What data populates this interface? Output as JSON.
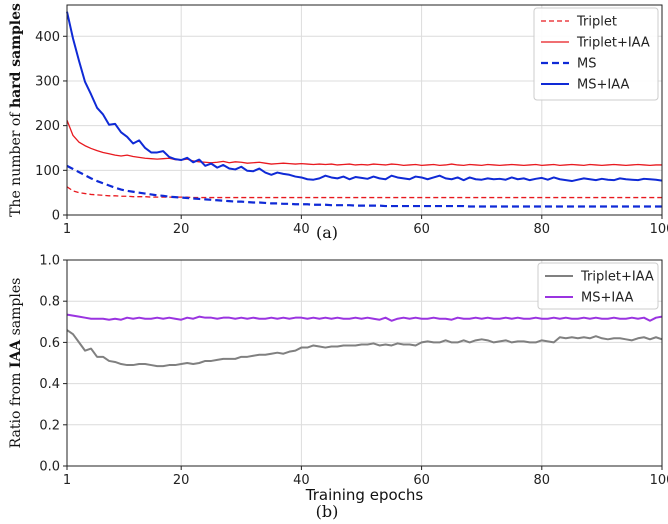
{
  "chart_data": [
    {
      "type": "line",
      "panel_label": "(a)",
      "ylabel_prefix": "The number of ",
      "ylabel_bold": "hard samples",
      "xlabel": "",
      "xlim": [
        1,
        100
      ],
      "ylim": [
        0,
        470
      ],
      "x_ticks": [
        1,
        20,
        40,
        60,
        80,
        100
      ],
      "y_ticks": [
        0,
        100,
        200,
        300,
        400
      ],
      "grid": true,
      "legend_position": "top-right",
      "series": [
        {
          "name": "Triplet",
          "color": "#e8191f",
          "dash": "dashed",
          "width": 1.3,
          "values": [
            63,
            54,
            50,
            48,
            46,
            45,
            44,
            43,
            43,
            42,
            42,
            41,
            41,
            41,
            40,
            40,
            40,
            40,
            40,
            40,
            40,
            39,
            39,
            39,
            39,
            39,
            39,
            39,
            39,
            39,
            39,
            39,
            39,
            39,
            39,
            39,
            39,
            39,
            39,
            39,
            39,
            39,
            39,
            39,
            39,
            39,
            39,
            39,
            39,
            39,
            39,
            39,
            39,
            39,
            39,
            39,
            39,
            39,
            39,
            39,
            39,
            39,
            39,
            39,
            39,
            39,
            39,
            39,
            39,
            39,
            39,
            39,
            39,
            39,
            39,
            39,
            39,
            39,
            39,
            39,
            39,
            39,
            39,
            39,
            39,
            39,
            39,
            39,
            39,
            39,
            39,
            39,
            39,
            39,
            39,
            39,
            39,
            39,
            39,
            39
          ]
        },
        {
          "name": "Triplet+IAA",
          "color": "#e8191f",
          "dash": "solid",
          "width": 1.3,
          "values": [
            212,
            178,
            163,
            155,
            149,
            144,
            140,
            137,
            134,
            132,
            134,
            131,
            129,
            127,
            126,
            125,
            126,
            127,
            124,
            123,
            125,
            121,
            119,
            118,
            117,
            118,
            120,
            117,
            119,
            118,
            116,
            117,
            118,
            116,
            114,
            115,
            116,
            115,
            114,
            115,
            114,
            113,
            114,
            113,
            114,
            112,
            113,
            114,
            112,
            113,
            112,
            114,
            113,
            112,
            114,
            113,
            111,
            112,
            113,
            111,
            112,
            113,
            111,
            112,
            114,
            112,
            111,
            113,
            112,
            111,
            113,
            112,
            111,
            112,
            113,
            112,
            111,
            112,
            113,
            111,
            112,
            113,
            111,
            112,
            113,
            112,
            111,
            113,
            112,
            111,
            112,
            113,
            112,
            111,
            112,
            113,
            112,
            111,
            112,
            112
          ]
        },
        {
          "name": "MS",
          "color": "#0f2ad6",
          "dash": "dashed",
          "width": 2.2,
          "values": [
            110,
            103,
            96,
            89,
            82,
            76,
            71,
            66,
            61,
            57,
            54,
            52,
            50,
            48,
            46,
            44,
            43,
            41,
            40,
            39,
            38,
            37,
            36,
            35,
            34,
            33,
            32,
            31,
            30,
            30,
            29,
            28,
            28,
            27,
            26,
            26,
            25,
            25,
            24,
            24,
            24,
            23,
            23,
            23,
            22,
            22,
            22,
            22,
            21,
            21,
            21,
            21,
            21,
            20,
            20,
            20,
            20,
            20,
            20,
            20,
            20,
            20,
            20,
            20,
            20,
            20,
            20,
            19,
            19,
            19,
            19,
            19,
            19,
            19,
            19,
            19,
            19,
            19,
            19,
            19,
            19,
            19,
            19,
            19,
            19,
            19,
            19,
            19,
            19,
            19,
            19,
            19,
            19,
            19,
            19,
            19,
            19,
            19,
            19,
            19
          ]
        },
        {
          "name": "MS+IAA",
          "color": "#0f2ad6",
          "dash": "solid",
          "width": 2.0,
          "values": [
            455,
            395,
            345,
            298,
            270,
            240,
            225,
            202,
            204,
            185,
            175,
            160,
            167,
            150,
            140,
            140,
            143,
            130,
            125,
            123,
            128,
            118,
            124,
            110,
            115,
            106,
            112,
            104,
            102,
            108,
            99,
            98,
            104,
            95,
            90,
            95,
            92,
            90,
            86,
            84,
            80,
            79,
            82,
            88,
            84,
            82,
            86,
            80,
            85,
            83,
            81,
            86,
            82,
            80,
            88,
            84,
            82,
            80,
            86,
            84,
            80,
            84,
            88,
            82,
            80,
            84,
            78,
            84,
            80,
            79,
            82,
            80,
            81,
            79,
            84,
            80,
            82,
            78,
            81,
            83,
            79,
            84,
            80,
            78,
            76,
            79,
            82,
            80,
            78,
            81,
            79,
            78,
            82,
            80,
            79,
            78,
            81,
            80,
            79,
            77
          ]
        }
      ]
    },
    {
      "type": "line",
      "panel_label": "(b)",
      "ylabel_prefix": "Ratio from ",
      "ylabel_bold": "IAA",
      "ylabel_suffix": " samples",
      "xlabel": "Training epochs",
      "xlim": [
        1,
        100
      ],
      "ylim": [
        0,
        1.0
      ],
      "x_ticks": [
        1,
        20,
        40,
        60,
        80,
        100
      ],
      "y_ticks": [
        0.0,
        0.2,
        0.4,
        0.6,
        0.8,
        1.0
      ],
      "y_tick_labels": [
        "0.0",
        "0.2",
        "0.4",
        "0.6",
        "0.8",
        "1.0"
      ],
      "grid": true,
      "legend_position": "top-right",
      "series": [
        {
          "name": "Triplet+IAA",
          "color": "#808080",
          "dash": "solid",
          "width": 2.0,
          "values": [
            0.66,
            0.64,
            0.6,
            0.56,
            0.57,
            0.53,
            0.53,
            0.51,
            0.505,
            0.495,
            0.49,
            0.49,
            0.495,
            0.495,
            0.49,
            0.485,
            0.485,
            0.49,
            0.49,
            0.495,
            0.5,
            0.495,
            0.5,
            0.51,
            0.51,
            0.515,
            0.52,
            0.52,
            0.52,
            0.53,
            0.53,
            0.535,
            0.54,
            0.54,
            0.545,
            0.55,
            0.545,
            0.555,
            0.56,
            0.575,
            0.575,
            0.585,
            0.58,
            0.575,
            0.58,
            0.58,
            0.585,
            0.585,
            0.585,
            0.59,
            0.59,
            0.595,
            0.585,
            0.59,
            0.585,
            0.595,
            0.59,
            0.59,
            0.585,
            0.6,
            0.605,
            0.6,
            0.6,
            0.61,
            0.6,
            0.6,
            0.61,
            0.6,
            0.61,
            0.615,
            0.61,
            0.6,
            0.605,
            0.61,
            0.6,
            0.605,
            0.605,
            0.6,
            0.6,
            0.61,
            0.605,
            0.6,
            0.625,
            0.62,
            0.625,
            0.62,
            0.625,
            0.62,
            0.63,
            0.62,
            0.615,
            0.62,
            0.62,
            0.615,
            0.61,
            0.62,
            0.625,
            0.615,
            0.625,
            0.615
          ]
        },
        {
          "name": "MS+IAA",
          "color": "#9a34e0",
          "dash": "solid",
          "width": 2.0,
          "values": [
            0.735,
            0.73,
            0.725,
            0.72,
            0.715,
            0.715,
            0.715,
            0.71,
            0.715,
            0.71,
            0.72,
            0.715,
            0.72,
            0.715,
            0.715,
            0.72,
            0.715,
            0.72,
            0.715,
            0.71,
            0.72,
            0.715,
            0.725,
            0.72,
            0.72,
            0.715,
            0.72,
            0.72,
            0.715,
            0.72,
            0.715,
            0.72,
            0.715,
            0.715,
            0.72,
            0.715,
            0.72,
            0.715,
            0.72,
            0.72,
            0.715,
            0.72,
            0.715,
            0.72,
            0.715,
            0.72,
            0.715,
            0.715,
            0.72,
            0.715,
            0.72,
            0.715,
            0.71,
            0.72,
            0.705,
            0.715,
            0.72,
            0.715,
            0.72,
            0.715,
            0.715,
            0.72,
            0.715,
            0.715,
            0.71,
            0.72,
            0.715,
            0.715,
            0.72,
            0.715,
            0.72,
            0.715,
            0.715,
            0.72,
            0.715,
            0.72,
            0.715,
            0.715,
            0.72,
            0.715,
            0.715,
            0.72,
            0.715,
            0.72,
            0.715,
            0.715,
            0.72,
            0.715,
            0.72,
            0.715,
            0.715,
            0.72,
            0.715,
            0.715,
            0.72,
            0.715,
            0.72,
            0.705,
            0.72,
            0.725
          ]
        }
      ]
    }
  ]
}
